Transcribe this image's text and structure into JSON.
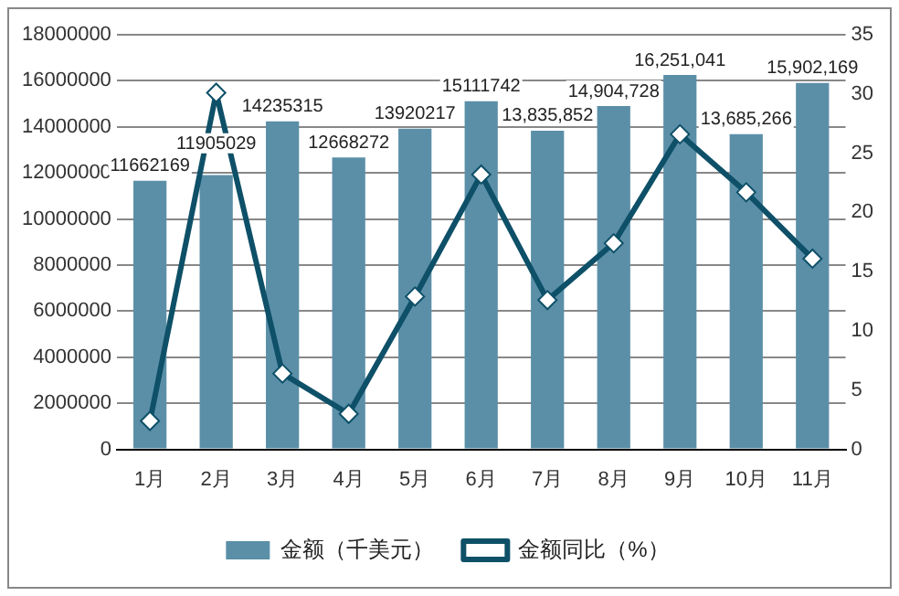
{
  "chart_data": {
    "type": "bar",
    "categories": [
      "1月",
      "2月",
      "3月",
      "4月",
      "5月",
      "6月",
      "7月",
      "8月",
      "9月",
      "10月",
      "11月"
    ],
    "series": [
      {
        "name": "金额（千美元）",
        "color": "#5b8fa8",
        "values": [
          11662169,
          11905029,
          14235315,
          12668272,
          13920217,
          15111742,
          13835852,
          14904728,
          16251041,
          13685266,
          15902169
        ],
        "value_labels": [
          "11662169",
          "11905029",
          "14235315",
          "12668272",
          "13920217",
          "15111742",
          "13,835,852",
          "14,904,728",
          "16,251,041",
          "13,685,266",
          "15,902,169"
        ]
      },
      {
        "name": "金额同比（%）",
        "type": "line",
        "axis": "y2",
        "color": "#0e5068",
        "marker": "diamond",
        "values": [
          2.4,
          30.1,
          6.4,
          3.0,
          12.9,
          23.2,
          12.6,
          17.4,
          26.6,
          21.7,
          16.1
        ]
      }
    ],
    "ylim": [
      0,
      18000000
    ],
    "yticks": [
      0,
      2000000,
      4000000,
      6000000,
      8000000,
      10000000,
      12000000,
      14000000,
      16000000,
      18000000
    ],
    "y2lim": [
      0,
      35
    ],
    "y2ticks": [
      0,
      5,
      10,
      15,
      20,
      25,
      30,
      35
    ],
    "grid": "y",
    "legend": "bottom"
  }
}
